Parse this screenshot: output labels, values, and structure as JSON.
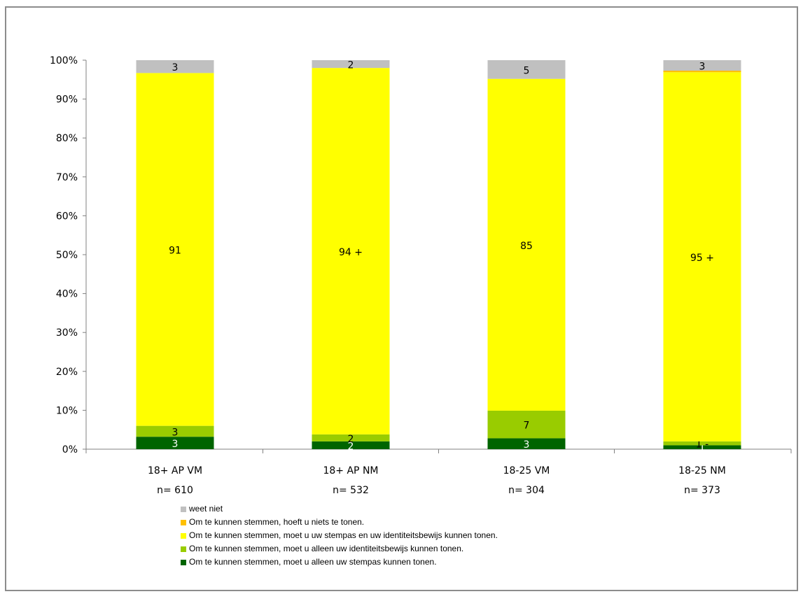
{
  "chart_data": {
    "type": "bar",
    "stacked": true,
    "percent_axis": true,
    "ylim": [
      0,
      100
    ],
    "yticks": [
      "0%",
      "10%",
      "20%",
      "30%",
      "40%",
      "50%",
      "60%",
      "70%",
      "80%",
      "90%",
      "100%"
    ],
    "categories": [
      {
        "label": "18+ AP VM",
        "n": "n= 610"
      },
      {
        "label": "18+ AP NM",
        "n": "n= 532"
      },
      {
        "label": "18-25 VM",
        "n": "n= 304"
      },
      {
        "label": "18-25 NM",
        "n": "n= 373"
      }
    ],
    "series": [
      {
        "name": "Om te kunnen stemmen, moet u alleen uw stempas kunnen tonen.",
        "color": "#006400",
        "values": [
          3.2,
          2.0,
          2.8,
          1.0
        ],
        "labels": [
          "3",
          "2",
          "3",
          "1"
        ],
        "label_color": "#ffffff"
      },
      {
        "name": "Om te kunnen stemmen, moet u alleen uw identiteitsbewijs kunnen tonen.",
        "color": "#99cc00",
        "values": [
          2.8,
          1.8,
          7.1,
          1.0
        ],
        "labels": [
          "3",
          "2",
          "7",
          "1 -"
        ],
        "label_color": "#000000"
      },
      {
        "name": "Om te kunnen stemmen, moet u uw stempas en uw identiteitsbewijs kunnen tonen.",
        "color": "#ffff00",
        "values": [
          90.7,
          94.2,
          85.3,
          94.9
        ],
        "labels": [
          "91",
          "94 +",
          "85",
          "95 +"
        ],
        "label_color": "#000000"
      },
      {
        "name": "Om te kunnen stemmen, hoeft u niets te tonen.",
        "color": "#ffc000",
        "values": [
          0,
          0,
          0,
          0.4
        ],
        "labels": [
          "",
          "",
          "",
          ""
        ],
        "label_color": "#000000"
      },
      {
        "name": "weet niet",
        "color": "#c0c0c0",
        "values": [
          3.3,
          2.0,
          4.8,
          2.7
        ],
        "labels": [
          "3",
          "2",
          "5",
          "3"
        ],
        "label_color": "#000000"
      }
    ],
    "legend_order": [
      4,
      3,
      2,
      1,
      0
    ],
    "legend_position": "bottom-left",
    "grid": false
  }
}
